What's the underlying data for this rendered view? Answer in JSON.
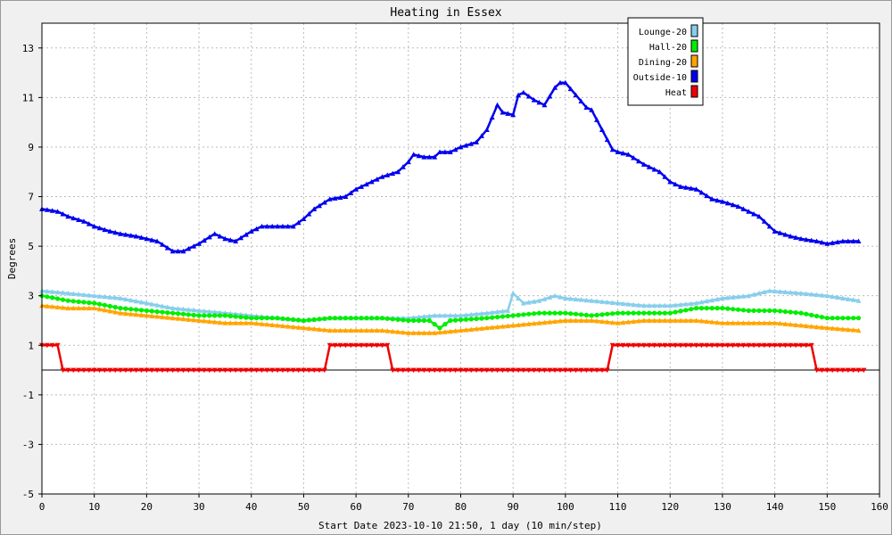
{
  "chart_data": {
    "type": "line",
    "title": "Heating in Essex",
    "xlabel": "Start Date 2023-10-10 21:50, 1 day (10 min/step)",
    "ylabel": "Degrees",
    "xlim": [
      0,
      160
    ],
    "ylim": [
      -5,
      14
    ],
    "x_ticks": [
      0,
      10,
      20,
      30,
      40,
      50,
      60,
      70,
      80,
      90,
      100,
      110,
      120,
      130,
      140,
      150,
      160
    ],
    "y_ticks": [
      -5,
      -3,
      -1,
      1,
      3,
      5,
      7,
      9,
      11,
      13
    ],
    "grid": true,
    "legend_position": "top-right",
    "series": [
      {
        "name": "Lounge-20",
        "color": "#87ceeb",
        "x": [
          0,
          5,
          10,
          15,
          20,
          25,
          30,
          35,
          40,
          45,
          50,
          55,
          60,
          65,
          70,
          75,
          80,
          85,
          89,
          90,
          92,
          95,
          98,
          100,
          105,
          110,
          115,
          120,
          125,
          130,
          135,
          139,
          145,
          150,
          156
        ],
        "y": [
          3.2,
          3.1,
          3.0,
          2.9,
          2.7,
          2.5,
          2.4,
          2.3,
          2.2,
          2.1,
          2.0,
          2.1,
          2.1,
          2.1,
          2.1,
          2.2,
          2.2,
          2.3,
          2.4,
          3.1,
          2.7,
          2.8,
          3.0,
          2.9,
          2.8,
          2.7,
          2.6,
          2.6,
          2.7,
          2.9,
          3.0,
          3.2,
          3.1,
          3.0,
          2.8
        ]
      },
      {
        "name": "Hall-20",
        "color": "#00ee00",
        "x": [
          0,
          5,
          10,
          15,
          20,
          25,
          30,
          35,
          40,
          45,
          50,
          55,
          60,
          65,
          70,
          74,
          76,
          78,
          85,
          90,
          95,
          100,
          105,
          110,
          115,
          120,
          125,
          130,
          135,
          140,
          145,
          150,
          156
        ],
        "y": [
          3.0,
          2.8,
          2.7,
          2.5,
          2.4,
          2.3,
          2.2,
          2.2,
          2.1,
          2.1,
          2.0,
          2.1,
          2.1,
          2.1,
          2.0,
          2.0,
          1.7,
          2.0,
          2.1,
          2.2,
          2.3,
          2.3,
          2.2,
          2.3,
          2.3,
          2.3,
          2.5,
          2.5,
          2.4,
          2.4,
          2.3,
          2.1,
          2.1
        ]
      },
      {
        "name": "Dining-20",
        "color": "#ffa500",
        "x": [
          0,
          5,
          10,
          15,
          20,
          25,
          30,
          35,
          40,
          45,
          50,
          55,
          60,
          65,
          70,
          75,
          80,
          85,
          90,
          95,
          100,
          105,
          110,
          115,
          120,
          125,
          130,
          135,
          140,
          145,
          150,
          156
        ],
        "y": [
          2.6,
          2.5,
          2.5,
          2.3,
          2.2,
          2.1,
          2.0,
          1.9,
          1.9,
          1.8,
          1.7,
          1.6,
          1.6,
          1.6,
          1.5,
          1.5,
          1.6,
          1.7,
          1.8,
          1.9,
          2.0,
          2.0,
          1.9,
          2.0,
          2.0,
          2.0,
          1.9,
          1.9,
          1.9,
          1.8,
          1.7,
          1.6
        ]
      },
      {
        "name": "Outside-10",
        "color": "#0000ee",
        "x": [
          0,
          3,
          5,
          8,
          10,
          13,
          15,
          18,
          20,
          22,
          25,
          27,
          30,
          33,
          35,
          37,
          40,
          42,
          45,
          48,
          50,
          52,
          55,
          58,
          60,
          63,
          65,
          68,
          70,
          71,
          73,
          75,
          76,
          78,
          80,
          83,
          85,
          87,
          88,
          90,
          91,
          92,
          94,
          95,
          96,
          98,
          99,
          100,
          102,
          104,
          105,
          107,
          109,
          110,
          112,
          115,
          118,
          120,
          122,
          125,
          128,
          130,
          133,
          135,
          137,
          140,
          143,
          145,
          148,
          150,
          153,
          156
        ],
        "y": [
          6.5,
          6.4,
          6.2,
          6.0,
          5.8,
          5.6,
          5.5,
          5.4,
          5.3,
          5.2,
          4.8,
          4.8,
          5.1,
          5.5,
          5.3,
          5.2,
          5.6,
          5.8,
          5.8,
          5.8,
          6.1,
          6.5,
          6.9,
          7.0,
          7.3,
          7.6,
          7.8,
          8.0,
          8.4,
          8.7,
          8.6,
          8.6,
          8.8,
          8.8,
          9.0,
          9.2,
          9.7,
          10.7,
          10.4,
          10.3,
          11.1,
          11.2,
          10.9,
          10.8,
          10.7,
          11.4,
          11.6,
          11.6,
          11.1,
          10.6,
          10.5,
          9.7,
          8.9,
          8.8,
          8.7,
          8.3,
          8.0,
          7.6,
          7.4,
          7.3,
          6.9,
          6.8,
          6.6,
          6.4,
          6.2,
          5.6,
          5.4,
          5.3,
          5.2,
          5.1,
          5.2,
          5.2
        ]
      },
      {
        "name": "Heat",
        "color": "#ee0000",
        "x": [
          0,
          3,
          4,
          54,
          55,
          66,
          67,
          108,
          109,
          147,
          148,
          157
        ],
        "y": [
          1,
          1,
          0,
          0,
          1,
          1,
          0,
          0,
          1,
          1,
          0,
          0
        ]
      }
    ]
  }
}
